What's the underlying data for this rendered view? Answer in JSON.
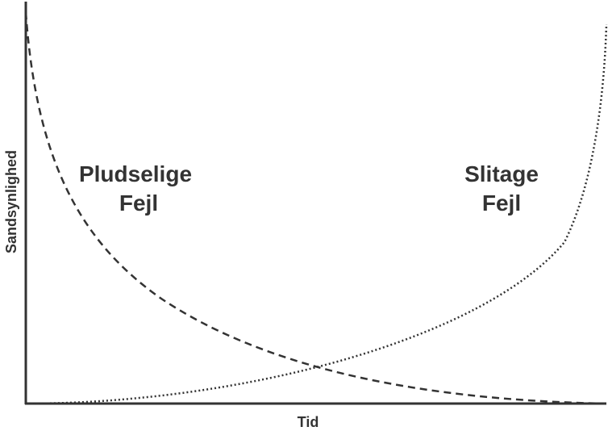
{
  "axes": {
    "y_label": "Sandsynlighed",
    "x_label": "Tid"
  },
  "curves": [
    {
      "label_lines": [
        "Pludselige",
        "Fejl"
      ]
    },
    {
      "label_lines": [
        "Slitage",
        "Fejl"
      ]
    }
  ]
}
